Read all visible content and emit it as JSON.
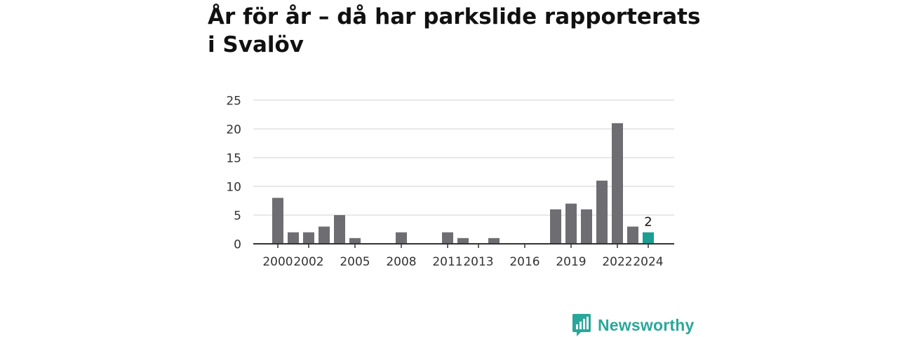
{
  "title": "År för år – då har parkslide rapporterats i Svalöv",
  "brand": {
    "name": "Newsworthy",
    "icon": "bar-chart-icon"
  },
  "colors": {
    "bar": "#6e6d72",
    "highlight": "#1a9e92",
    "grid": "#d9d9d9",
    "axis": "#333333",
    "text": "#333333",
    "brand": "#2aa79b"
  },
  "chart_data": {
    "type": "bar",
    "title": "År för år – då har parkslide rapporterats i Svalöv",
    "xlabel": "",
    "ylabel": "",
    "categories": [
      "2000",
      "2001",
      "2002",
      "2003",
      "2004",
      "2005",
      "2006",
      "2007",
      "2008",
      "2009",
      "2010",
      "2011",
      "2012",
      "2013",
      "2014",
      "2015",
      "2016",
      "2017",
      "2018",
      "2019",
      "2020",
      "2021",
      "2022",
      "2023",
      "2024"
    ],
    "values": [
      8,
      2,
      2,
      3,
      5,
      1,
      0,
      0,
      2,
      0,
      0,
      2,
      1,
      0,
      1,
      0,
      0,
      0,
      6,
      7,
      6,
      11,
      21,
      3,
      2
    ],
    "highlight_index": 24,
    "highlight_label": "2",
    "x_ticks": [
      "2000",
      "2002",
      "2005",
      "2008",
      "2011",
      "2013",
      "2016",
      "2019",
      "2022",
      "2024"
    ],
    "y_ticks": [
      0,
      5,
      10,
      15,
      20,
      25
    ],
    "ylim": [
      0,
      25
    ],
    "grid": true,
    "legend": "none"
  }
}
